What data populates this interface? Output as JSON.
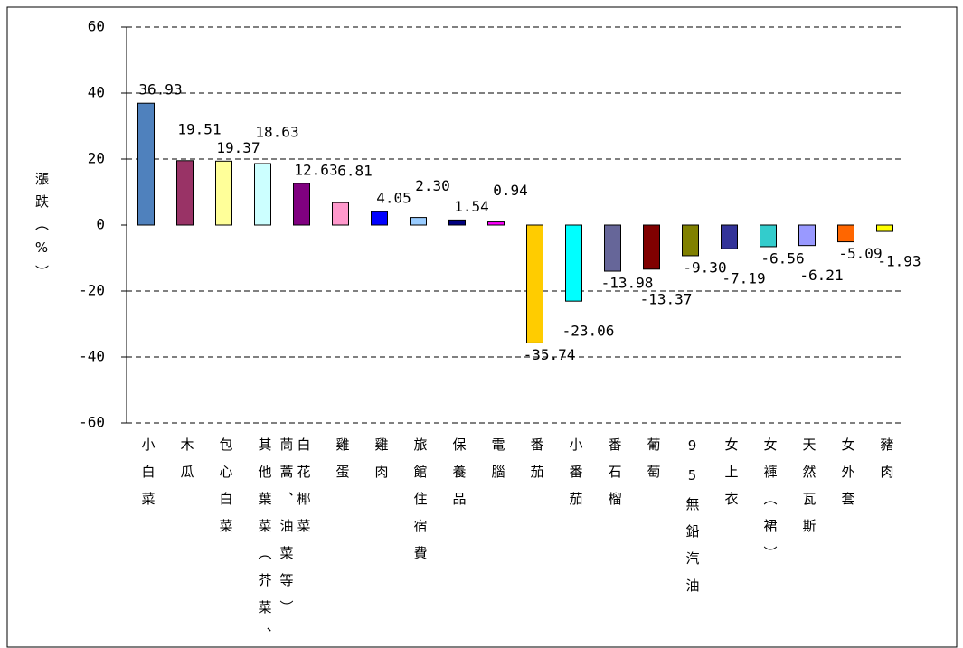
{
  "chart_data": {
    "type": "bar",
    "y_label": "漲跌（%）",
    "categories": [
      "小白菜",
      "木瓜",
      "包心白菜",
      "其他葉菜（芥菜、茼蒿、油菜等）",
      "白花椰菜",
      "雞蛋",
      "雞肉",
      "旅館住宿費",
      "保養品",
      "電腦",
      "番茄",
      "小番茄",
      "番石榴",
      "葡萄",
      "95無鉛汽油",
      "女上衣",
      "女褲（裙）",
      "天然瓦斯",
      "女外套",
      "豬肉"
    ],
    "values": [
      36.93,
      19.51,
      19.37,
      18.63,
      12.63,
      6.81,
      4.05,
      2.3,
      1.54,
      0.94,
      -35.74,
      -23.06,
      -13.98,
      -13.37,
      -9.3,
      -7.19,
      -6.56,
      -6.21,
      -5.09,
      -1.93
    ],
    "value_labels": [
      "36.93",
      "19.51",
      "19.37",
      "18.63",
      "12.63",
      "6.81",
      "4.05",
      "2.30",
      "1.54",
      "0.94",
      "-35.74",
      "-23.06",
      "-13.98",
      "-13.37",
      "-9.30",
      "-7.19",
      "-6.56",
      "-6.21",
      "-5.09",
      "-1.93"
    ],
    "colors": [
      "#4f81bd",
      "#993366",
      "#ffff99",
      "#ccffff",
      "#800080",
      "#ff99cc",
      "#0000ff",
      "#99ccff",
      "#000080",
      "#ff00ff",
      "#ffcc00",
      "#00ffff",
      "#666699",
      "#800000",
      "#808000",
      "#333399",
      "#33cccc",
      "#9999ff",
      "#ff6600",
      "#ffff00"
    ],
    "ylim": [
      -60,
      60
    ],
    "yticks": [
      -60,
      -40,
      -20,
      0,
      20,
      40,
      60
    ],
    "grid": true
  }
}
